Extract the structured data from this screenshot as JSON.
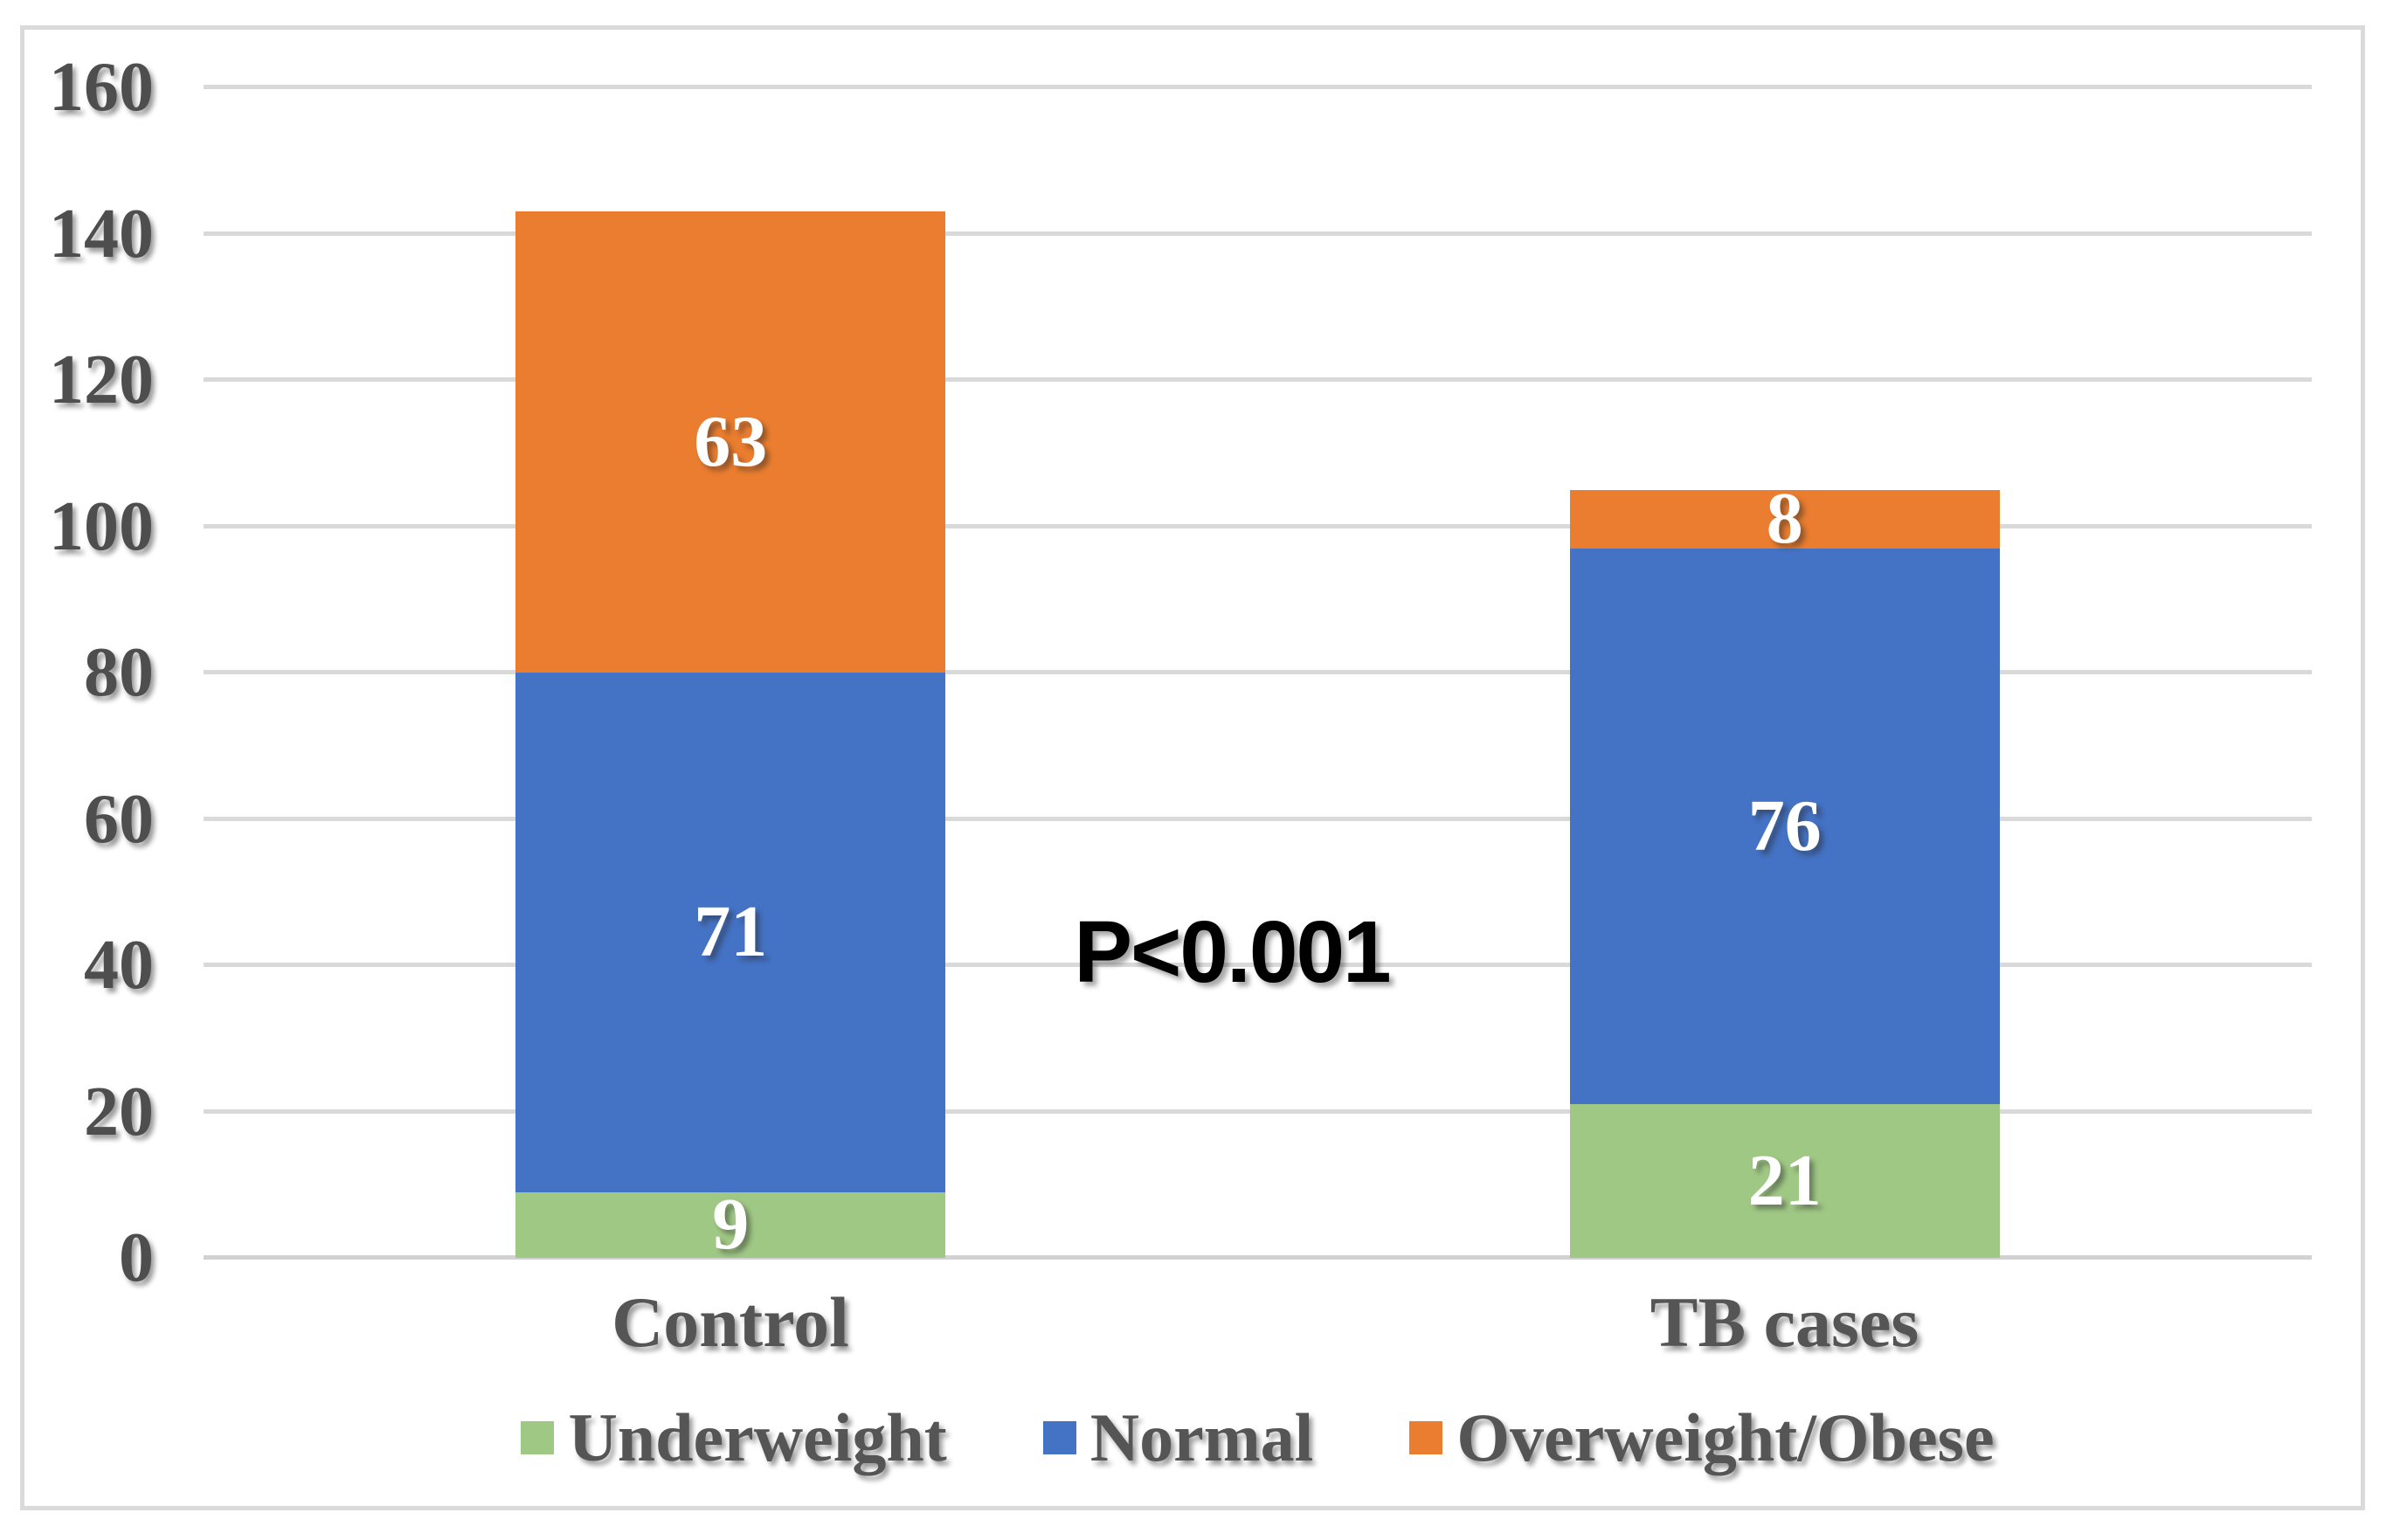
{
  "chart_data": {
    "type": "bar",
    "subtype": "stacked-column",
    "title": "",
    "xlabel": "",
    "ylabel": "",
    "categories": [
      "Control",
      "TB cases"
    ],
    "series": [
      {
        "name": "Underweight",
        "color": "#A0C885",
        "values": [
          9,
          21
        ]
      },
      {
        "name": "Normal",
        "color": "#4472C4",
        "values": [
          71,
          76
        ]
      },
      {
        "name": "Overweight/Obese",
        "color": "#EA7D2F",
        "values": [
          63,
          8
        ]
      }
    ],
    "stack_totals": [
      143,
      105
    ],
    "data_labels": {
      "color": "#FFFFFF",
      "values": [
        [
          "9",
          "71",
          "63"
        ],
        [
          "21",
          "76",
          "8"
        ]
      ]
    },
    "annotation": {
      "text": "P<0.001",
      "color": "#000000"
    },
    "y_axis": {
      "min": 0,
      "max": 160,
      "step": 20,
      "tick_labels": [
        "0",
        "20",
        "40",
        "60",
        "80",
        "100",
        "120",
        "140",
        "160"
      ]
    },
    "grid": true,
    "legend_position": "bottom"
  },
  "style_colors": {
    "background": "#FFFFFF",
    "frame_border": "#DADADA",
    "gridline": "#D9D9D9",
    "axis_line": "#D2D2D2",
    "tick_text": "#4E4E4E",
    "category_text": "#555555",
    "legend_text": "#555555"
  }
}
